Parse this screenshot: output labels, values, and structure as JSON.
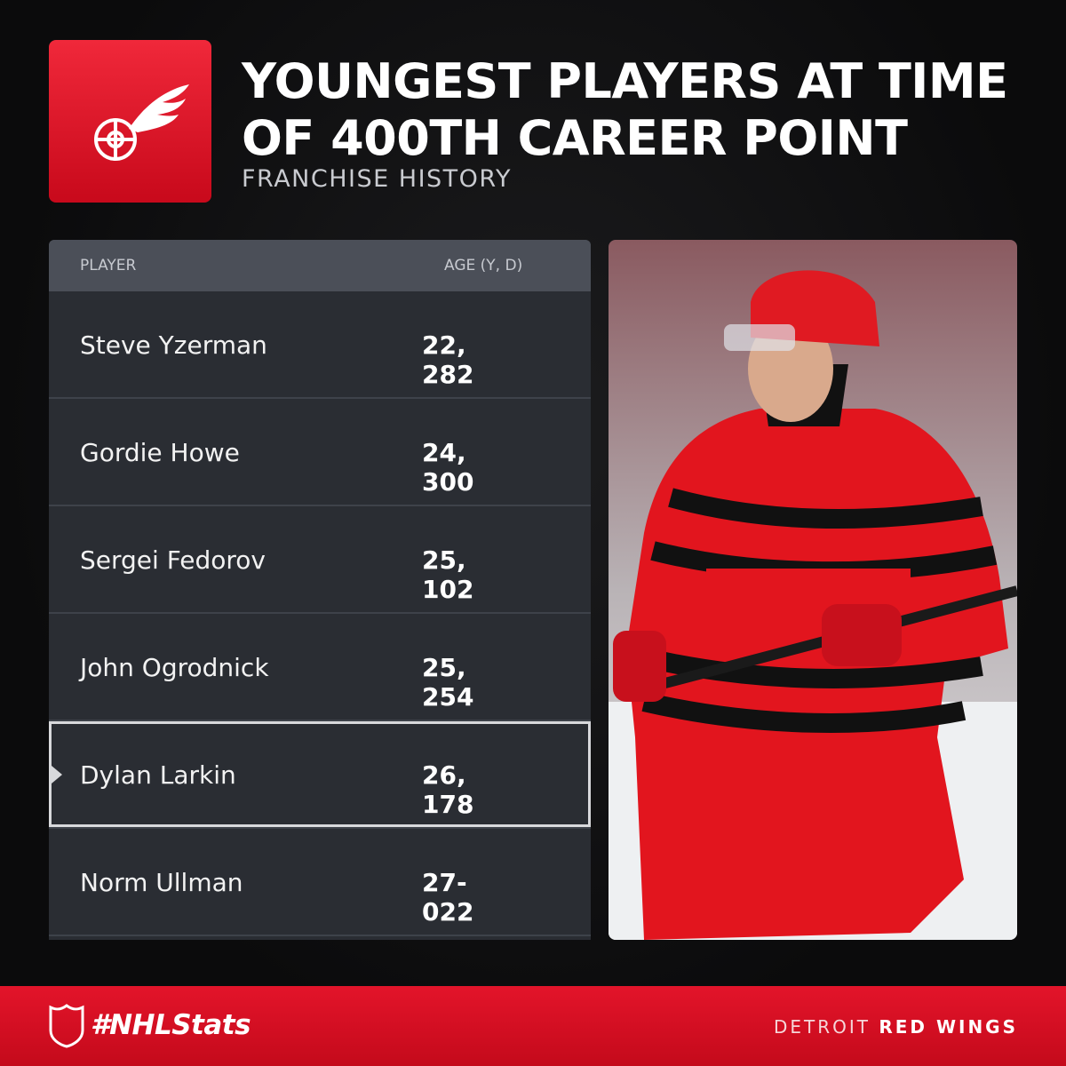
{
  "header": {
    "title_lines": [
      "YOUNGEST PLAYERS AT TIME",
      "OF 400TH CAREER POINT"
    ],
    "subtitle": "FRANCHISE HISTORY"
  },
  "table": {
    "columns": [
      "PLAYER",
      "AGE (Y, D)"
    ],
    "rows": [
      [
        "Steve Yzerman",
        "22, 282"
      ],
      [
        "Gordie Howe",
        "24, 300"
      ],
      [
        "Sergei Fedorov",
        "25, 102"
      ],
      [
        "John Ogrodnick",
        "25, 254"
      ],
      [
        "Dylan Larkin",
        "26, 178"
      ],
      [
        "Norm Ullman",
        "27-022"
      ]
    ]
  },
  "footer": {
    "hashtag": "#NHLStats",
    "team_city": "DETROIT",
    "team_name": "RED WINGS"
  }
}
